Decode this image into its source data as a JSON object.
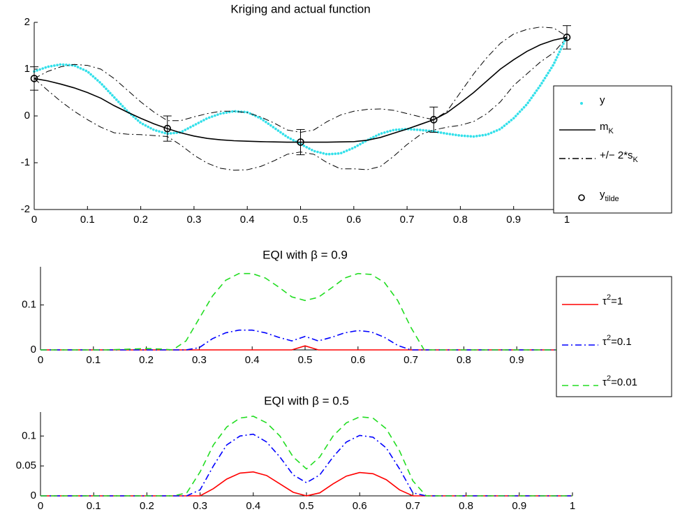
{
  "chart_data": [
    {
      "type": "line",
      "title": "Kriging and actual function",
      "x": [
        0,
        0.025,
        0.05,
        0.075,
        0.1,
        0.125,
        0.15,
        0.175,
        0.2,
        0.225,
        0.25,
        0.275,
        0.3,
        0.325,
        0.35,
        0.375,
        0.4,
        0.425,
        0.45,
        0.475,
        0.5,
        0.525,
        0.55,
        0.575,
        0.6,
        0.625,
        0.65,
        0.675,
        0.7,
        0.725,
        0.75,
        0.775,
        0.8,
        0.825,
        0.85,
        0.875,
        0.9,
        0.925,
        0.95,
        0.975,
        1
      ],
      "xlim": [
        0,
        1
      ],
      "xticks": [
        0,
        0.1,
        0.2,
        0.3,
        0.4,
        0.5,
        0.6,
        0.7,
        0.8,
        0.9,
        1
      ],
      "ylim": [
        -2,
        2
      ],
      "yticks": [
        -2,
        -1,
        0,
        1,
        2
      ],
      "legend": "outside right",
      "series": [
        {
          "name": "y",
          "color": "#33e0ea",
          "line": "dotted",
          "values": [
            0.95,
            1.05,
            1.1,
            1.08,
            0.95,
            0.7,
            0.4,
            0.1,
            -0.15,
            -0.3,
            -0.38,
            -0.35,
            -0.2,
            -0.05,
            0.05,
            0.1,
            0.08,
            -0.05,
            -0.25,
            -0.45,
            -0.6,
            -0.75,
            -0.82,
            -0.8,
            -0.68,
            -0.52,
            -0.38,
            -0.3,
            -0.28,
            -0.3,
            -0.33,
            -0.38,
            -0.42,
            -0.44,
            -0.4,
            -0.28,
            -0.05,
            0.25,
            0.65,
            1.1,
            1.7
          ]
        },
        {
          "name": [
            "m",
            {
              "sub": "K"
            }
          ],
          "color": "#000000",
          "line": "solid",
          "values": [
            0.8,
            0.75,
            0.68,
            0.6,
            0.5,
            0.38,
            0.22,
            0.08,
            -0.05,
            -0.17,
            -0.27,
            -0.36,
            -0.43,
            -0.48,
            -0.51,
            -0.53,
            -0.54,
            -0.55,
            -0.555,
            -0.56,
            -0.56,
            -0.56,
            -0.56,
            -0.555,
            -0.55,
            -0.52,
            -0.46,
            -0.37,
            -0.28,
            -0.18,
            -0.08,
            0.07,
            0.28,
            0.5,
            0.75,
            1.0,
            1.2,
            1.38,
            1.52,
            1.62,
            1.68
          ]
        },
        {
          "name": [
            "+/− 2*s",
            {
              "sub": "K"
            }
          ],
          "color": "#000000",
          "line": "dashdot",
          "upper": [
            0.8,
            0.95,
            1.05,
            1.1,
            1.08,
            1.0,
            0.8,
            0.55,
            0.3,
            0.08,
            -0.1,
            -0.1,
            -0.02,
            0.05,
            0.1,
            0.1,
            0.07,
            -0.02,
            -0.15,
            -0.3,
            -0.35,
            -0.3,
            -0.12,
            0.02,
            0.1,
            0.14,
            0.15,
            0.12,
            0.05,
            -0.02,
            -0.08,
            0.1,
            0.5,
            0.9,
            1.25,
            1.55,
            1.75,
            1.85,
            1.9,
            1.88,
            1.7
          ],
          "lower": [
            0.8,
            0.55,
            0.31,
            0.1,
            -0.08,
            -0.24,
            -0.36,
            -0.39,
            -0.4,
            -0.42,
            -0.44,
            -0.62,
            -0.84,
            -1.01,
            -1.12,
            -1.16,
            -1.15,
            -1.08,
            -0.96,
            -0.82,
            -0.77,
            -0.82,
            -1.0,
            -1.13,
            -1.13,
            -1.15,
            -1.08,
            -0.86,
            -0.61,
            -0.4,
            -0.3,
            -0.24,
            -0.2,
            -0.12,
            0.05,
            0.3,
            0.65,
            0.9,
            1.15,
            1.35,
            1.68
          ]
        },
        {
          "name": [
            "y",
            {
              "sub": "tilde"
            }
          ],
          "color": "#000000",
          "marker": "circle",
          "x": [
            0,
            0.25,
            0.5,
            0.75,
            1
          ],
          "values": [
            0.8,
            -0.27,
            -0.56,
            -0.08,
            1.68
          ],
          "errors": [
            0.25,
            0.27,
            0.27,
            0.27,
            0.25
          ]
        }
      ]
    },
    {
      "type": "line",
      "title": "EQI  with β = 0.9",
      "x": [
        0,
        0.025,
        0.05,
        0.075,
        0.1,
        0.125,
        0.15,
        0.175,
        0.2,
        0.225,
        0.25,
        0.275,
        0.3,
        0.325,
        0.35,
        0.375,
        0.4,
        0.425,
        0.45,
        0.475,
        0.5,
        0.525,
        0.55,
        0.575,
        0.6,
        0.625,
        0.65,
        0.675,
        0.7,
        0.725,
        0.75,
        0.775,
        0.8,
        0.825,
        0.85,
        0.875,
        0.9,
        0.925,
        0.95,
        0.975,
        1
      ],
      "xlim": [
        0,
        1
      ],
      "xticks": [
        0,
        0.1,
        0.2,
        0.3,
        0.4,
        0.5,
        0.6,
        0.7,
        0.8,
        0.9,
        1
      ],
      "ylim": [
        0,
        0.185
      ],
      "yticks": [
        0,
        0.1
      ],
      "legend": "outside right",
      "series": [
        {
          "name": [
            "τ",
            {
              "sup": "2"
            },
            "=1"
          ],
          "color": "#ff0000",
          "line": "solid",
          "values": [
            0,
            0,
            0,
            0,
            0,
            0,
            0,
            0,
            0,
            0,
            0,
            0,
            0,
            0,
            0,
            0,
            0,
            0,
            0,
            0,
            0.009,
            0,
            0,
            0,
            0,
            0,
            0,
            0,
            0,
            0,
            0,
            0,
            0,
            0,
            0,
            0,
            0,
            0,
            0,
            0,
            0
          ]
        },
        {
          "name": [
            "τ",
            {
              "sup": "2"
            },
            "=0.1"
          ],
          "color": "#0000ff",
          "line": "dashdot",
          "values": [
            0,
            0,
            0,
            0,
            0,
            0,
            0,
            0,
            0,
            0,
            0,
            0,
            0.005,
            0.025,
            0.038,
            0.044,
            0.044,
            0.038,
            0.028,
            0.02,
            0.03,
            0.02,
            0.028,
            0.038,
            0.043,
            0.04,
            0.028,
            0.01,
            0,
            0,
            0,
            0,
            0,
            0,
            0,
            0,
            0,
            0,
            0,
            0,
            0
          ]
        },
        {
          "name": [
            "τ",
            {
              "sup": "2"
            },
            "=0.01"
          ],
          "color": "#22dd22",
          "line": "dashed",
          "values": [
            0,
            0,
            0,
            0,
            0,
            0,
            0.001,
            0.002,
            0.003,
            0.002,
            0,
            0.02,
            0.07,
            0.12,
            0.155,
            0.17,
            0.17,
            0.16,
            0.14,
            0.118,
            0.11,
            0.117,
            0.138,
            0.16,
            0.17,
            0.168,
            0.15,
            0.11,
            0.05,
            0,
            0,
            0,
            0,
            0,
            0,
            0,
            0,
            0,
            0,
            0,
            0
          ]
        }
      ]
    },
    {
      "type": "line",
      "title": "EQI with β = 0.5",
      "x": [
        0,
        0.025,
        0.05,
        0.075,
        0.1,
        0.125,
        0.15,
        0.175,
        0.2,
        0.225,
        0.25,
        0.275,
        0.3,
        0.325,
        0.35,
        0.375,
        0.4,
        0.425,
        0.45,
        0.475,
        0.5,
        0.525,
        0.55,
        0.575,
        0.6,
        0.625,
        0.65,
        0.675,
        0.7,
        0.725,
        0.75,
        0.775,
        0.8,
        0.825,
        0.85,
        0.875,
        0.9,
        0.925,
        0.95,
        0.975,
        1
      ],
      "xlim": [
        0,
        1
      ],
      "xticks": [
        0,
        0.1,
        0.2,
        0.3,
        0.4,
        0.5,
        0.6,
        0.7,
        0.8,
        0.9,
        1
      ],
      "ylim": [
        0,
        0.14
      ],
      "yticks": [
        0,
        0.05,
        0.1
      ],
      "series": [
        {
          "color": "#ff0000",
          "line": "solid",
          "values": [
            0,
            0,
            0,
            0,
            0,
            0,
            0,
            0,
            0,
            0,
            0,
            0,
            0,
            0.012,
            0.028,
            0.038,
            0.04,
            0.034,
            0.02,
            0.006,
            0,
            0.005,
            0.02,
            0.033,
            0.039,
            0.037,
            0.027,
            0.01,
            0,
            0,
            0,
            0,
            0,
            0,
            0,
            0,
            0,
            0,
            0,
            0,
            0
          ]
        },
        {
          "color": "#0000ff",
          "line": "dashdot",
          "values": [
            0,
            0,
            0,
            0,
            0,
            0,
            0,
            0,
            0,
            0,
            0,
            0,
            0.01,
            0.05,
            0.085,
            0.1,
            0.103,
            0.09,
            0.065,
            0.035,
            0.022,
            0.035,
            0.065,
            0.09,
            0.101,
            0.098,
            0.08,
            0.045,
            0.005,
            0,
            0,
            0,
            0,
            0,
            0,
            0,
            0,
            0,
            0,
            0,
            0
          ]
        },
        {
          "color": "#22dd22",
          "line": "dashed",
          "values": [
            0,
            0,
            0,
            0,
            0,
            0,
            0,
            0,
            0,
            0,
            0,
            0.005,
            0.04,
            0.085,
            0.115,
            0.13,
            0.133,
            0.122,
            0.1,
            0.065,
            0.045,
            0.065,
            0.1,
            0.122,
            0.132,
            0.13,
            0.112,
            0.075,
            0.025,
            0,
            0,
            0,
            0,
            0,
            0,
            0,
            0,
            0,
            0,
            0,
            0
          ]
        }
      ]
    }
  ]
}
